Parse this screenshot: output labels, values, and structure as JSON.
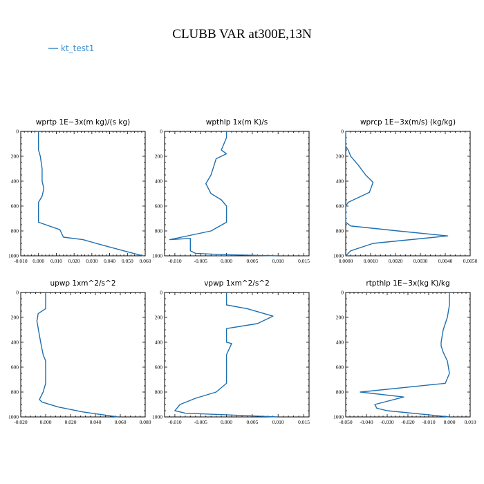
{
  "figure_title": "CLUBB VAR at300E,13N",
  "legend": {
    "label": "kt_test1",
    "color": "#3a8fd1"
  },
  "line_color": "#1f6fb0",
  "chart_data": [
    {
      "type": "line",
      "title": "wprtp   1E−3x(m kg)/(s kg)",
      "xlim": [
        -0.01,
        0.06
      ],
      "ylim": [
        0,
        1000
      ],
      "x_ticks": [
        "-0.010",
        "0.000",
        "0.010",
        "0.020",
        "0.030",
        "0.040",
        "0.050",
        "0.060"
      ],
      "y_ticks": [
        "0",
        "200",
        "400",
        "600",
        "800",
        "1000"
      ],
      "series": [
        {
          "name": "kt_test1",
          "x": [
            0.0,
            0.0,
            0.0,
            0.001,
            0.002,
            0.002,
            0.003,
            0.002,
            0.0,
            0.0,
            0.0,
            0.012,
            0.014,
            0.025,
            0.035,
            0.048,
            0.056,
            0.059
          ],
          "y": [
            0,
            50,
            150,
            200,
            300,
            400,
            460,
            520,
            570,
            650,
            730,
            790,
            850,
            870,
            910,
            960,
            990,
            1000
          ]
        }
      ]
    },
    {
      "type": "line",
      "title": "wpthlp   1x(m K)/s",
      "xlim": [
        -0.012,
        0.016
      ],
      "ylim": [
        0,
        1000
      ],
      "x_ticks": [
        "-0.010",
        "-0.005",
        "0.000",
        "0.005",
        "0.010",
        "0.015"
      ],
      "y_ticks": [
        "0",
        "200",
        "400",
        "600",
        "800",
        "1000"
      ],
      "series": [
        {
          "name": "kt_test1",
          "x": [
            0.0,
            0.0,
            -0.001,
            0.0,
            -0.002,
            -0.003,
            -0.004,
            -0.003,
            -0.001,
            0.0,
            0.0,
            -0.003,
            -0.011,
            -0.007,
            -0.007,
            -0.006,
            -0.001,
            0.01
          ],
          "y": [
            0,
            50,
            150,
            180,
            220,
            350,
            420,
            500,
            550,
            600,
            730,
            800,
            870,
            860,
            960,
            980,
            990,
            1000
          ]
        }
      ]
    },
    {
      "type": "line",
      "title": "wprcp   1E−3x(m/s) (kg/kg)",
      "xlim": [
        0.0,
        0.005
      ],
      "ylim": [
        0,
        1000
      ],
      "x_ticks": [
        "0.0000",
        "0.0010",
        "0.0020",
        "0.0030",
        "0.0040",
        "0.0050"
      ],
      "y_ticks": [
        "0",
        "200",
        "400",
        "600",
        "800",
        "1000"
      ],
      "series": [
        {
          "name": "kt_test1",
          "x": [
            0.0,
            0.0,
            0.0001,
            0.0002,
            0.0005,
            0.0008,
            0.0011,
            0.00095,
            0.0001,
            0.0,
            0.0,
            0.0002,
            0.0021,
            0.0041,
            0.0011,
            0.0002,
            0.0
          ],
          "y": [
            0,
            120,
            150,
            200,
            270,
            350,
            410,
            490,
            570,
            600,
            730,
            760,
            800,
            840,
            900,
            960,
            1000
          ]
        }
      ]
    },
    {
      "type": "line",
      "title": "upwp   1xm^2/s^2",
      "xlim": [
        -0.02,
        0.08
      ],
      "ylim": [
        0,
        1000
      ],
      "x_ticks": [
        "-0.020",
        "0.000",
        "0.020",
        "0.040",
        "0.060",
        "0.080"
      ],
      "y_ticks": [
        "0",
        "200",
        "400",
        "600",
        "800",
        "1000"
      ],
      "series": [
        {
          "name": "kt_test1",
          "x": [
            0.0,
            0.0,
            -0.006,
            -0.007,
            -0.004,
            -0.002,
            0.0,
            0.0,
            0.0,
            -0.002,
            -0.005,
            -0.003,
            0.01,
            0.03,
            0.058
          ],
          "y": [
            0,
            130,
            170,
            230,
            400,
            500,
            550,
            650,
            730,
            800,
            860,
            880,
            920,
            960,
            1000
          ]
        }
      ]
    },
    {
      "type": "line",
      "title": "vpwp   1xm^2/s^2",
      "xlim": [
        -0.012,
        0.016
      ],
      "ylim": [
        0,
        1000
      ],
      "x_ticks": [
        "-0.010",
        "-0.005",
        "0.000",
        "0.005",
        "0.010",
        "0.015"
      ],
      "y_ticks": [
        "0",
        "200",
        "400",
        "600",
        "800",
        "1000"
      ],
      "series": [
        {
          "name": "kt_test1",
          "x": [
            0.0,
            0.0,
            0.004,
            0.009,
            0.006,
            0.0,
            0.0,
            0.001,
            0.0,
            0.0,
            0.0,
            -0.002,
            -0.006,
            -0.009,
            -0.01,
            -0.008,
            0.01
          ],
          "y": [
            0,
            100,
            130,
            190,
            250,
            290,
            400,
            410,
            500,
            650,
            730,
            800,
            850,
            900,
            950,
            970,
            1000
          ]
        }
      ]
    },
    {
      "type": "line",
      "title": "rtpthlp   1E−3x(kg K)/kg",
      "xlim": [
        -0.05,
        0.01
      ],
      "ylim": [
        0,
        1000
      ],
      "x_ticks": [
        "-0.050",
        "-0.040",
        "-0.030",
        "-0.020",
        "-0.010",
        "0.000",
        "0.010"
      ],
      "y_ticks": [
        "0",
        "200",
        "400",
        "600",
        "800",
        "1000"
      ],
      "series": [
        {
          "name": "kt_test1",
          "x": [
            0.0,
            0.0,
            -0.001,
            -0.003,
            -0.004,
            -0.004,
            -0.003,
            -0.001,
            0.0,
            -0.002,
            -0.043,
            -0.022,
            -0.036,
            -0.035,
            -0.03,
            0.0
          ],
          "y": [
            0,
            100,
            200,
            300,
            400,
            430,
            480,
            550,
            650,
            730,
            800,
            840,
            900,
            930,
            950,
            1000
          ]
        }
      ]
    }
  ]
}
